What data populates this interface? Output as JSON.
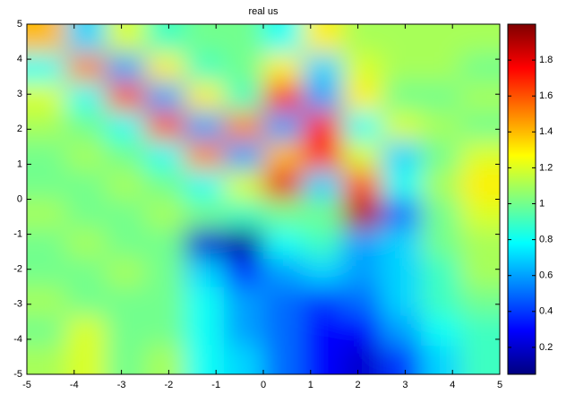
{
  "chart_data": {
    "type": "heatmap",
    "title": "real us",
    "colormap": "jet",
    "x": [
      -4.583,
      -3.75,
      -2.917,
      -2.083,
      -1.25,
      -0.417,
      0.417,
      1.25,
      2.083,
      2.917,
      3.75,
      4.583
    ],
    "y": [
      4.583,
      3.75,
      2.917,
      2.083,
      1.25,
      0.417,
      -0.417,
      -1.25,
      -2.083,
      -2.917,
      -3.75,
      -4.583
    ],
    "z": [
      [
        1.4,
        0.7,
        1.2,
        0.9,
        1.0,
        1.0,
        0.8,
        1.3,
        1.1,
        1.1,
        1.1,
        1.1
      ],
      [
        0.8,
        1.5,
        0.6,
        1.3,
        0.9,
        1.0,
        1.3,
        0.7,
        1.2,
        1.1,
        1.1,
        1.0
      ],
      [
        1.2,
        0.8,
        1.6,
        0.6,
        1.3,
        0.9,
        1.7,
        0.6,
        1.3,
        1.0,
        1.0,
        1.1
      ],
      [
        1.1,
        1.0,
        0.8,
        1.6,
        0.6,
        1.5,
        0.6,
        1.7,
        0.8,
        1.2,
        1.1,
        1.0
      ],
      [
        1.0,
        1.1,
        1.0,
        0.8,
        1.5,
        0.6,
        1.4,
        1.7,
        1.2,
        0.7,
        1.0,
        1.2
      ],
      [
        1.0,
        1.0,
        1.1,
        1.0,
        0.8,
        1.2,
        1.8,
        0.7,
        1.6,
        0.8,
        1.1,
        1.3
      ],
      [
        1.1,
        1.0,
        1.0,
        1.1,
        1.0,
        0.9,
        1.0,
        1.0,
        1.9,
        0.5,
        1.0,
        1.2
      ],
      [
        1.0,
        1.1,
        1.0,
        1.0,
        0.2,
        0.1,
        0.8,
        0.9,
        0.6,
        0.7,
        1.0,
        1.1
      ],
      [
        1.0,
        1.0,
        1.1,
        1.0,
        0.7,
        0.4,
        0.6,
        0.7,
        0.6,
        0.7,
        0.9,
        1.1
      ],
      [
        1.1,
        1.0,
        1.0,
        1.0,
        0.8,
        0.6,
        0.5,
        0.4,
        0.5,
        0.7,
        0.9,
        1.0
      ],
      [
        1.0,
        1.2,
        1.0,
        1.0,
        0.8,
        0.6,
        0.5,
        0.3,
        0.3,
        0.6,
        0.8,
        0.9
      ],
      [
        1.1,
        1.2,
        1.0,
        1.1,
        0.8,
        0.7,
        0.5,
        0.3,
        0.2,
        0.4,
        0.7,
        0.9
      ]
    ],
    "xlim": [
      -5,
      5
    ],
    "xticks": [
      -5,
      -4,
      -3,
      -2,
      -1,
      0,
      1,
      2,
      3,
      4,
      5
    ],
    "ylim": [
      -5,
      5
    ],
    "yticks": [
      -5,
      -4,
      -3,
      -2,
      -1,
      0,
      1,
      2,
      3,
      4,
      5
    ],
    "clim": [
      0.05,
      2.0
    ],
    "cticks": [
      0.2,
      0.4,
      0.6,
      0.8,
      1,
      1.2,
      1.4,
      1.6,
      1.8
    ]
  }
}
